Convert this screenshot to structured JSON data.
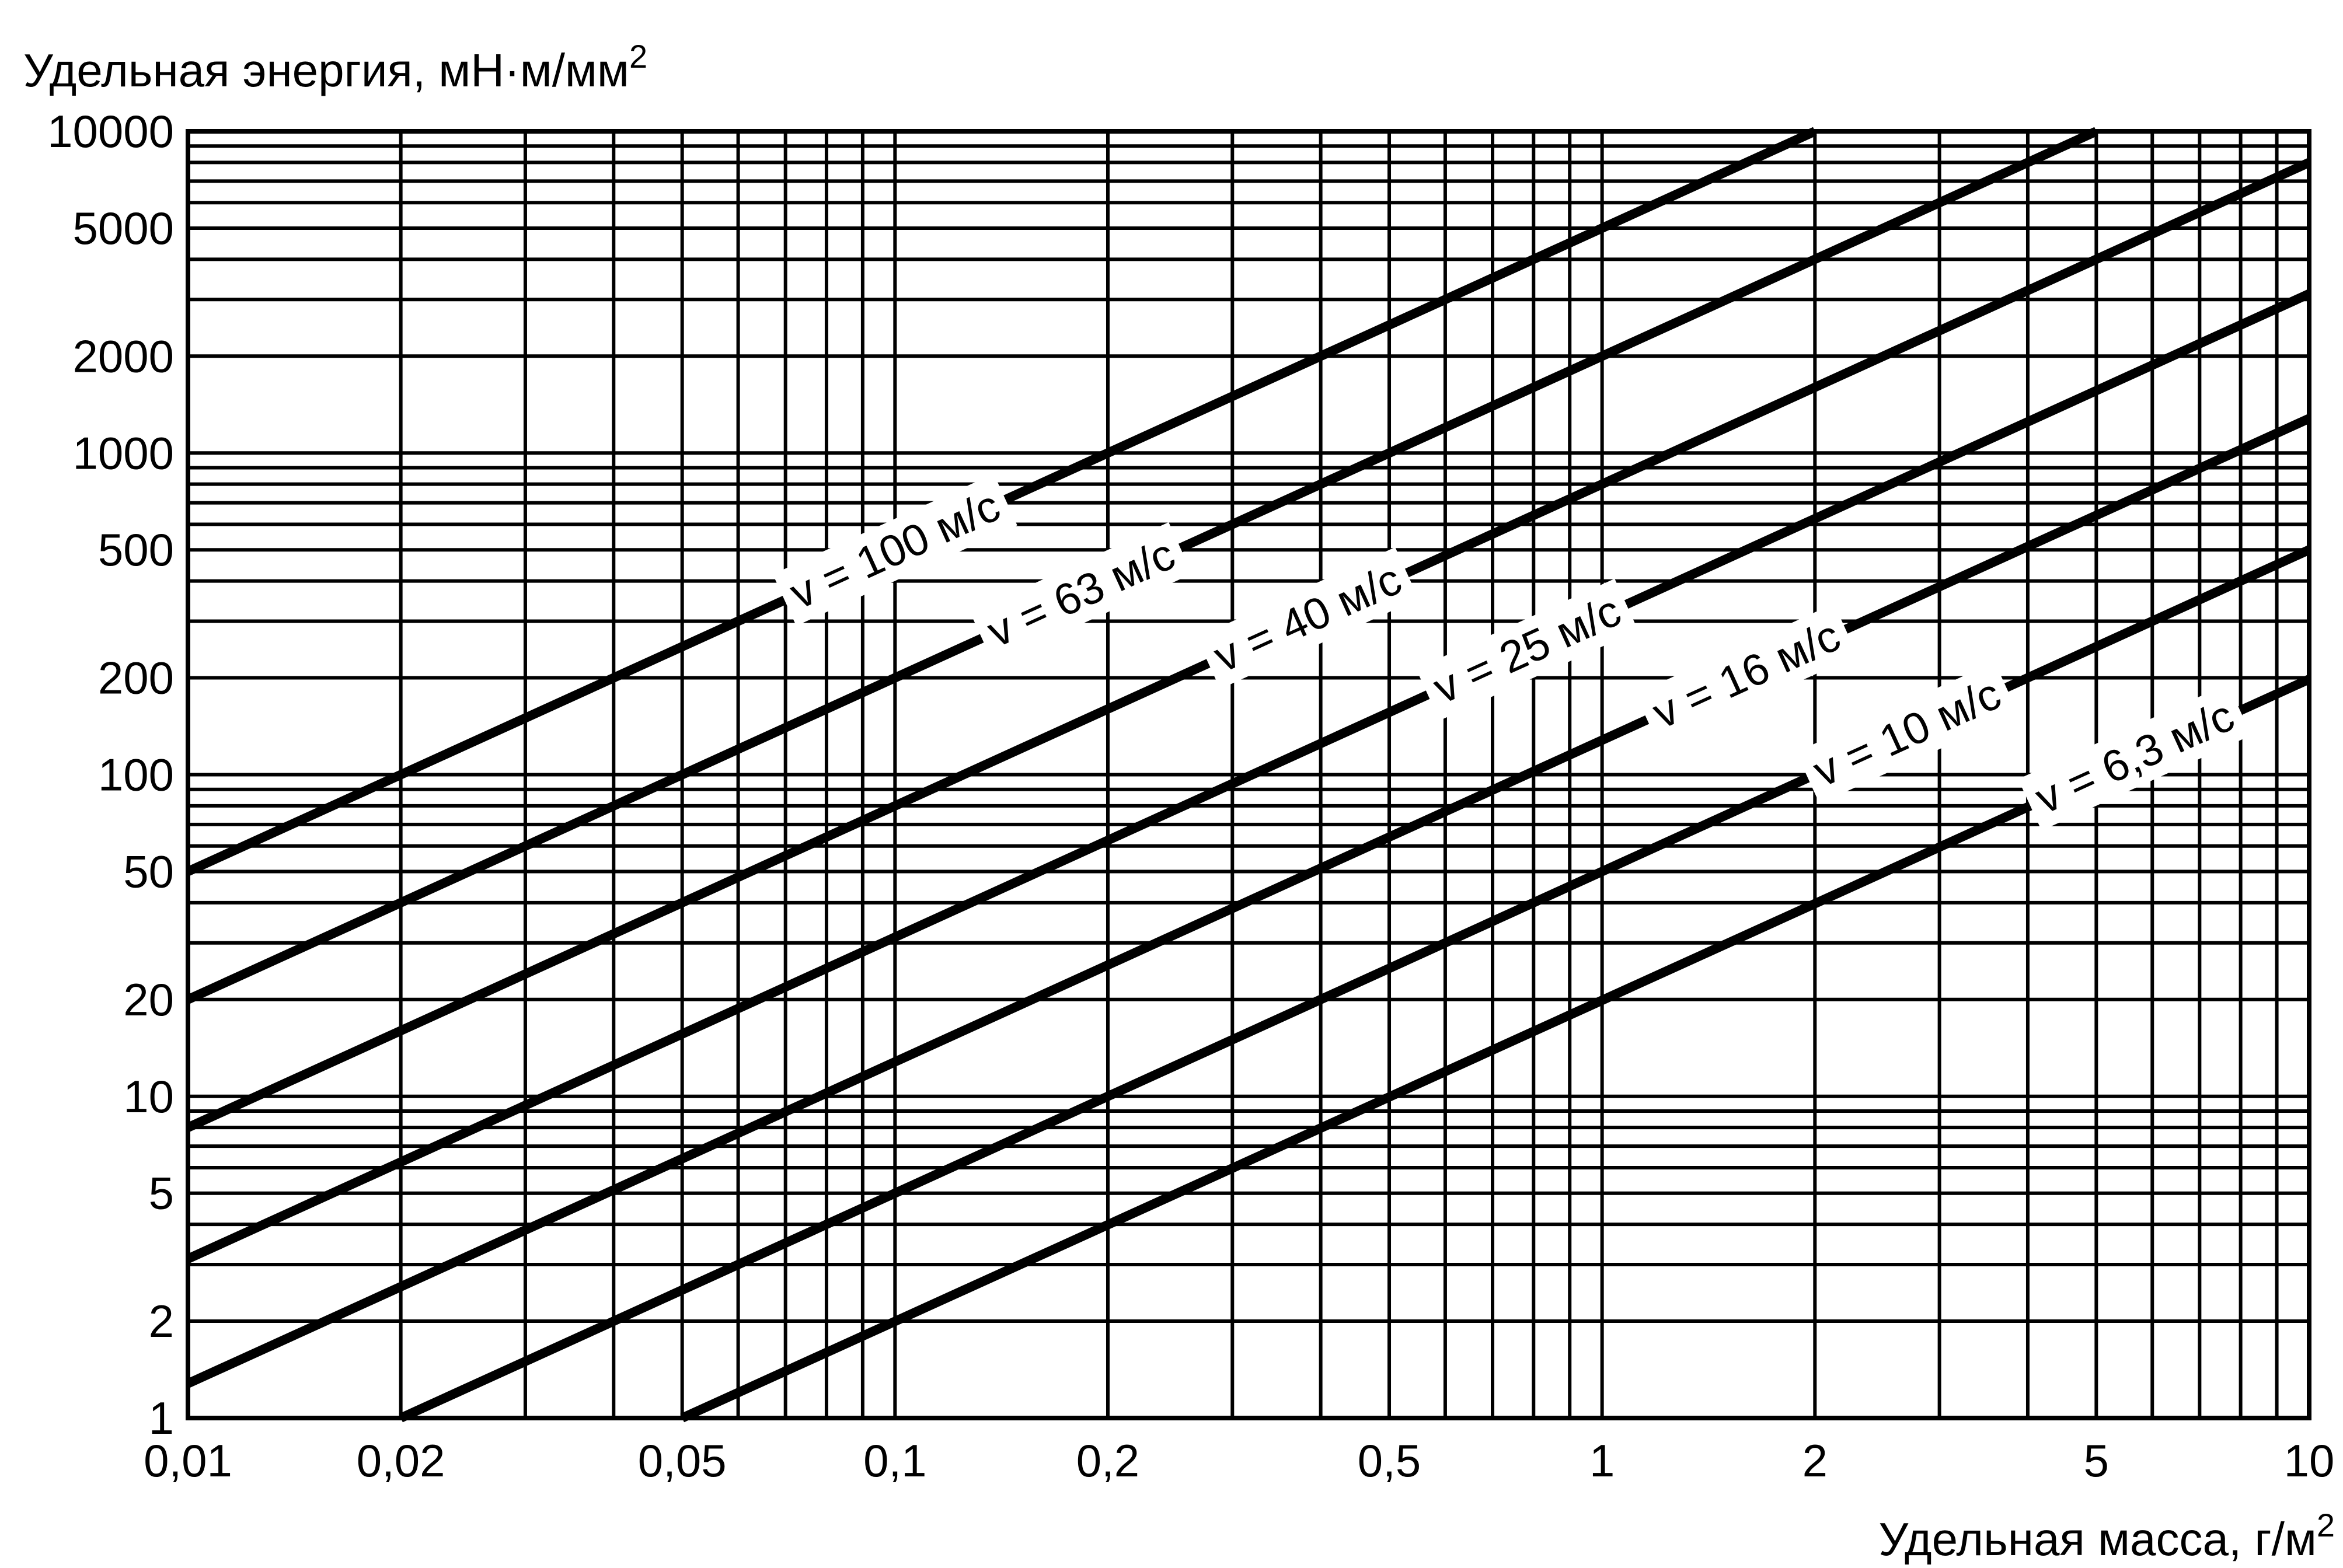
{
  "chart_data": {
    "type": "line",
    "xscale": "log",
    "yscale": "log",
    "xlim": [
      0.01,
      10
    ],
    "ylim": [
      1,
      10000
    ],
    "grid": true,
    "xlabel": "Удельная масса, г/м",
    "xlabel_sup": "2",
    "ylabel": "Удельная энергия, мН·м/мм",
    "ylabel_sup": "2",
    "x_ticks": [
      {
        "value": 0.01,
        "label": "0,01"
      },
      {
        "value": 0.02,
        "label": "0,02"
      },
      {
        "value": 0.05,
        "label": "0,05"
      },
      {
        "value": 0.1,
        "label": "0,1"
      },
      {
        "value": 0.2,
        "label": "0,2"
      },
      {
        "value": 0.5,
        "label": "0,5"
      },
      {
        "value": 1,
        "label": "1"
      },
      {
        "value": 2,
        "label": "2"
      },
      {
        "value": 5,
        "label": "5"
      },
      {
        "value": 10,
        "label": "10"
      }
    ],
    "y_ticks": [
      {
        "value": 1,
        "label": "1"
      },
      {
        "value": 2,
        "label": "2"
      },
      {
        "value": 5,
        "label": "5"
      },
      {
        "value": 10,
        "label": "10"
      },
      {
        "value": 20,
        "label": "20"
      },
      {
        "value": 50,
        "label": "50"
      },
      {
        "value": 100,
        "label": "100"
      },
      {
        "value": 200,
        "label": "200"
      },
      {
        "value": 500,
        "label": "500"
      },
      {
        "value": 1000,
        "label": "1000"
      },
      {
        "value": 2000,
        "label": "2000"
      },
      {
        "value": 5000,
        "label": "5000"
      },
      {
        "value": 10000,
        "label": "10000"
      }
    ],
    "x_gridlines": [
      0.01,
      0.02,
      0.03,
      0.04,
      0.05,
      0.06,
      0.07,
      0.08,
      0.09,
      0.1,
      0.2,
      0.3,
      0.4,
      0.5,
      0.6,
      0.7,
      0.8,
      0.9,
      1,
      2,
      3,
      4,
      5,
      6,
      7,
      8,
      9,
      10
    ],
    "y_gridlines": [
      1,
      2,
      3,
      4,
      5,
      6,
      7,
      8,
      9,
      10,
      20,
      30,
      40,
      50,
      60,
      70,
      80,
      90,
      100,
      200,
      300,
      400,
      500,
      600,
      700,
      800,
      900,
      1000,
      2000,
      3000,
      4000,
      5000,
      6000,
      7000,
      8000,
      9000,
      10000
    ],
    "series": [
      {
        "name": "v = 100 м/с",
        "x": [
          0.01,
          2
        ],
        "y": [
          50,
          10000
        ],
        "label_x": 0.3
      },
      {
        "name": "v = 63 м/с",
        "x": [
          0.01,
          5
        ],
        "y": [
          20,
          10000
        ],
        "label_x": 0.55
      },
      {
        "name": "v = 40 м/с",
        "x": [
          0.01,
          10
        ],
        "y": [
          8,
          8000
        ],
        "label_x": 1.15
      },
      {
        "name": "v = 25 м/с",
        "x": [
          0.01,
          10
        ],
        "y": [
          3.125,
          3125
        ],
        "label_x": 2.35
      },
      {
        "name": "v = 16 м/с",
        "x": [
          0.01,
          10
        ],
        "y": [
          1.28,
          1280
        ],
        "label_x": 4.8
      },
      {
        "name": "v = 10 м/с",
        "x": [
          0.02,
          10
        ],
        "y": [
          1,
          500
        ],
        "label_x": 8.1
      },
      {
        "name": "v = 6,3 м/с",
        "x": [
          0.05,
          10
        ],
        "y": [
          1,
          198
        ],
        "label_x": 17
      }
    ]
  }
}
